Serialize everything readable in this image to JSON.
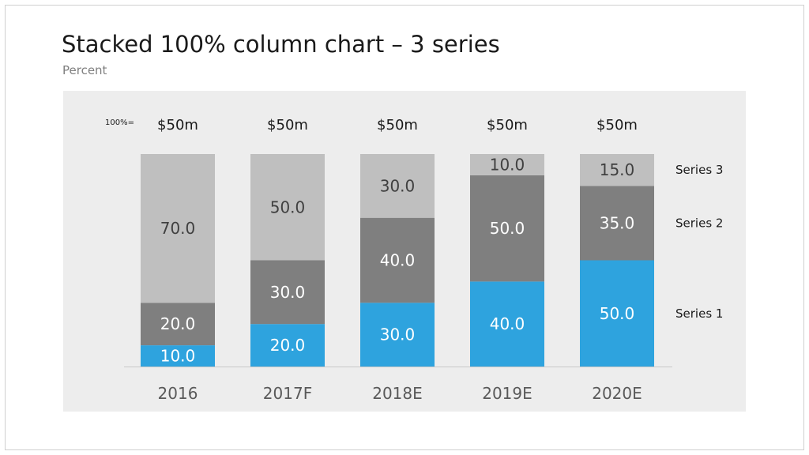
{
  "slide": {
    "title": "Stacked 100% column chart – 3 series",
    "subtitle": "Percent",
    "total_prefix": "100%="
  },
  "colors": {
    "panel_bg": "#ededed",
    "series_1": "#2ea3de",
    "series_2": "#7f7f7f",
    "series_3": "#bfbfbf",
    "label_light": "#ffffff",
    "label_dark": "#404040"
  },
  "chart_data": {
    "type": "bar",
    "stacked": "100%",
    "title": "Stacked 100% column chart – 3 series",
    "subtitle": "Percent",
    "categories": [
      "2016",
      "2017F",
      "2018E",
      "2019E",
      "2020E"
    ],
    "totals": [
      "$50m",
      "$50m",
      "$50m",
      "$50m",
      "$50m"
    ],
    "series": [
      {
        "name": "Series 1",
        "values": [
          10.0,
          20.0,
          30.0,
          40.0,
          50.0
        ]
      },
      {
        "name": "Series 2",
        "values": [
          20.0,
          30.0,
          40.0,
          50.0,
          35.0
        ]
      },
      {
        "name": "Series 3",
        "values": [
          70.0,
          50.0,
          30.0,
          10.0,
          15.0
        ]
      }
    ],
    "value_labels": [
      [
        "10.0",
        "20.0",
        "30.0",
        "40.0",
        "50.0"
      ],
      [
        "20.0",
        "30.0",
        "40.0",
        "50.0",
        "35.0"
      ],
      [
        "70.0",
        "50.0",
        "30.0",
        "10.0",
        "15.0"
      ]
    ],
    "ylim": [
      0,
      100
    ],
    "grid": false,
    "legend_placement": "right"
  }
}
